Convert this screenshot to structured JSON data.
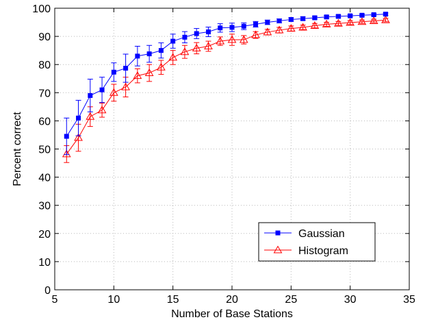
{
  "chart_data": {
    "type": "line",
    "title": "",
    "xlabel": "Number of Base Stations",
    "ylabel": "Percent correct",
    "xlim": [
      5,
      35
    ],
    "ylim": [
      0,
      100
    ],
    "xticks": [
      5,
      10,
      15,
      20,
      25,
      30,
      35
    ],
    "yticks": [
      0,
      10,
      20,
      30,
      40,
      50,
      60,
      70,
      80,
      90,
      100
    ],
    "grid": true,
    "legend_position": "bottom-right",
    "x": [
      6,
      7,
      8,
      9,
      10,
      11,
      12,
      13,
      14,
      15,
      16,
      17,
      18,
      19,
      20,
      21,
      22,
      23,
      24,
      25,
      26,
      27,
      28,
      29,
      30,
      31,
      32,
      33
    ],
    "series": [
      {
        "name": "Gaussian",
        "color": "#0000ff",
        "marker": "square",
        "values": [
          54.5,
          61,
          69,
          71,
          77.3,
          78.7,
          83,
          83.8,
          85,
          88.3,
          89.7,
          91,
          91.6,
          93,
          93.2,
          93.6,
          94.3,
          95,
          95.5,
          96,
          96.3,
          96.6,
          96.9,
          97.1,
          97.3,
          97.5,
          97.7,
          97.9
        ],
        "errors": [
          6.5,
          6.3,
          5.8,
          4.5,
          3.3,
          5,
          3.5,
          3,
          2.7,
          2.5,
          2,
          1.8,
          1.7,
          1.5,
          1.5,
          1.2,
          1,
          0.8,
          0.7,
          0.6,
          0.6,
          0.5,
          0.5,
          0.5,
          0.4,
          0.4,
          0.4,
          0.4
        ]
      },
      {
        "name": "Histogram",
        "color": "#ff0000",
        "marker": "triangle",
        "values": [
          48.2,
          54,
          61.5,
          63.8,
          70,
          72,
          76,
          77,
          79,
          82.5,
          84.5,
          85.8,
          86.5,
          88.3,
          88.8,
          88.8,
          90.5,
          91.5,
          92.2,
          92.8,
          93.2,
          93.8,
          94.3,
          94.6,
          94.9,
          95.2,
          95.5,
          95.8
        ],
        "errors": [
          3,
          4.8,
          3.5,
          2.5,
          3,
          3.5,
          2.5,
          3,
          2.5,
          2.5,
          2.3,
          2,
          1.8,
          1.5,
          2,
          1.5,
          1.2,
          1,
          1,
          0.9,
          0.8,
          0.8,
          0.7,
          0.7,
          0.7,
          0.6,
          0.6,
          0.6
        ]
      }
    ]
  }
}
